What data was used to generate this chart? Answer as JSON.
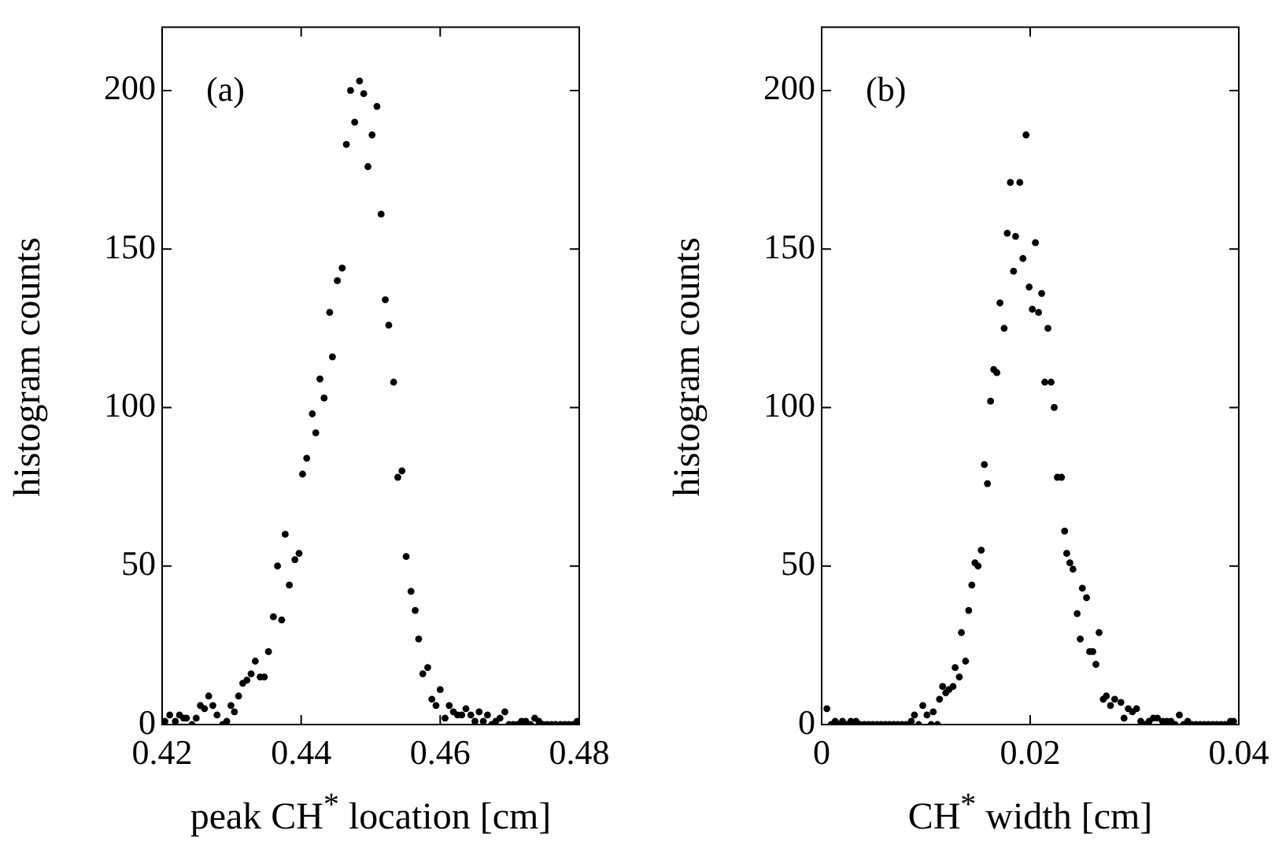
{
  "chart_data": [
    {
      "type": "scatter",
      "xlabel": "peak CH$^{*}$ location [cm]",
      "ylabel": "histogram counts",
      "annotations": [
        "(a)"
      ],
      "marker": "circle",
      "grid": false,
      "legend": false,
      "xlim": [
        0.42,
        0.48
      ],
      "xticks": [
        0.42,
        0.44,
        0.46,
        0.48
      ],
      "ylim": [
        0,
        220
      ],
      "yticks": [
        0,
        50,
        100,
        150,
        200
      ],
      "series": [
        {
          "color": "#000000",
          "x": [
            0.4204,
            0.4211,
            0.4219,
            0.4225,
            0.4231,
            0.4235,
            0.4243,
            0.4249,
            0.4255,
            0.4261,
            0.4267,
            0.4273,
            0.4279,
            0.4287,
            0.4293,
            0.4299,
            0.4304,
            0.431,
            0.4316,
            0.4322,
            0.4328,
            0.4334,
            0.4341,
            0.4347,
            0.4353,
            0.436,
            0.4366,
            0.4372,
            0.4377,
            0.4383,
            0.4391,
            0.4397,
            0.4402,
            0.4408,
            0.4416,
            0.4421,
            0.4427,
            0.4433,
            0.4441,
            0.4445,
            0.4452,
            0.4459,
            0.4465,
            0.4471,
            0.4477,
            0.4484,
            0.449,
            0.4496,
            0.4502,
            0.4509,
            0.4515,
            0.4521,
            0.4526,
            0.4533,
            0.4539,
            0.4545,
            0.4551,
            0.4558,
            0.4564,
            0.4569,
            0.4575,
            0.4582,
            0.4588,
            0.4594,
            0.46,
            0.4607,
            0.4613,
            0.4619,
            0.4625,
            0.4631,
            0.4637,
            0.4644,
            0.465,
            0.4656,
            0.4662,
            0.4668,
            0.4674,
            0.468,
            0.4686,
            0.4693,
            0.4699,
            0.4705,
            0.4711,
            0.4717,
            0.4723,
            0.473,
            0.4736,
            0.4742,
            0.4748,
            0.4754,
            0.476,
            0.4766,
            0.4773,
            0.4779,
            0.4785,
            0.4791,
            0.4797
          ],
          "values": [
            1,
            3,
            1,
            3,
            2,
            2,
            0,
            2,
            6,
            5,
            9,
            6,
            3,
            0,
            1,
            6,
            4,
            9,
            13,
            14,
            16,
            20,
            15,
            15,
            23,
            34,
            50,
            33,
            60,
            44,
            52,
            54,
            79,
            84,
            98,
            92,
            109,
            103,
            130,
            116,
            140,
            144,
            183,
            200,
            190,
            203,
            199,
            176,
            186,
            195,
            161,
            134,
            126,
            108,
            78,
            80,
            53,
            42,
            36,
            27,
            16,
            18,
            8,
            6,
            11,
            2,
            6,
            4,
            3,
            3,
            5,
            3,
            1,
            4,
            1,
            3,
            0,
            1,
            2,
            4,
            0,
            0,
            0,
            1,
            1,
            0,
            2,
            1,
            0,
            0,
            0,
            0,
            0,
            0,
            0,
            0,
            1
          ]
        }
      ]
    },
    {
      "type": "scatter",
      "xlabel": "CH$^{*}$ width [cm]",
      "ylabel": "histogram counts",
      "annotations": [
        "(b)"
      ],
      "marker": "circle",
      "grid": false,
      "legend": false,
      "xlim": [
        0,
        0.04
      ],
      "xticks": [
        0,
        0.02,
        0.04
      ],
      "ylim": [
        0,
        220
      ],
      "yticks": [
        0,
        50,
        100,
        150,
        200
      ],
      "series": [
        {
          "color": "#000000",
          "x": [
            0.0005,
            0.0009,
            0.0013,
            0.0016,
            0.002,
            0.0024,
            0.0028,
            0.0033,
            0.0037,
            0.0041,
            0.0045,
            0.0049,
            0.0053,
            0.0057,
            0.0061,
            0.0065,
            0.0069,
            0.0073,
            0.0077,
            0.0081,
            0.0086,
            0.0089,
            0.0093,
            0.0097,
            0.0101,
            0.0105,
            0.0107,
            0.0111,
            0.0113,
            0.0116,
            0.0119,
            0.0122,
            0.0126,
            0.0128,
            0.0132,
            0.0134,
            0.0138,
            0.0141,
            0.0144,
            0.0147,
            0.015,
            0.0153,
            0.0156,
            0.0159,
            0.0162,
            0.0165,
            0.0168,
            0.0171,
            0.0175,
            0.0178,
            0.0181,
            0.0184,
            0.0186,
            0.019,
            0.0193,
            0.0196,
            0.0199,
            0.0202,
            0.0205,
            0.0208,
            0.0211,
            0.0214,
            0.0217,
            0.022,
            0.0223,
            0.0226,
            0.023,
            0.0233,
            0.0235,
            0.0238,
            0.0241,
            0.0245,
            0.0248,
            0.025,
            0.0254,
            0.0257,
            0.026,
            0.0263,
            0.0266,
            0.027,
            0.0273,
            0.0277,
            0.0281,
            0.0287,
            0.029,
            0.0294,
            0.0298,
            0.0302,
            0.0306,
            0.031,
            0.0314,
            0.0318,
            0.0322,
            0.0327,
            0.0331,
            0.0335,
            0.0339,
            0.0343,
            0.0347,
            0.0351,
            0.0355,
            0.0359,
            0.0363,
            0.0367,
            0.0371,
            0.0375,
            0.0379,
            0.0383,
            0.0387,
            0.0392,
            0.0395
          ],
          "values": [
            5,
            0,
            1,
            0,
            1,
            0,
            1,
            1,
            0,
            0,
            0,
            0,
            0,
            0,
            0,
            0,
            0,
            0,
            0,
            0,
            1,
            3,
            0,
            6,
            3,
            0,
            4,
            0,
            8,
            12,
            10,
            11,
            12,
            18,
            15,
            29,
            20,
            36,
            44,
            51,
            50,
            55,
            82,
            76,
            102,
            112,
            111,
            133,
            125,
            155,
            171,
            143,
            154,
            171,
            147,
            186,
            138,
            131,
            152,
            130,
            136,
            108,
            125,
            108,
            100,
            78,
            78,
            61,
            54,
            51,
            49,
            35,
            27,
            43,
            40,
            23,
            23,
            19,
            29,
            8,
            9,
            6,
            8,
            7,
            2,
            5,
            4,
            5,
            1,
            0,
            1,
            2,
            2,
            1,
            1,
            1,
            0,
            3,
            0,
            1,
            0,
            0,
            0,
            0,
            0,
            0,
            0,
            0,
            0,
            1,
            1
          ]
        }
      ]
    }
  ]
}
